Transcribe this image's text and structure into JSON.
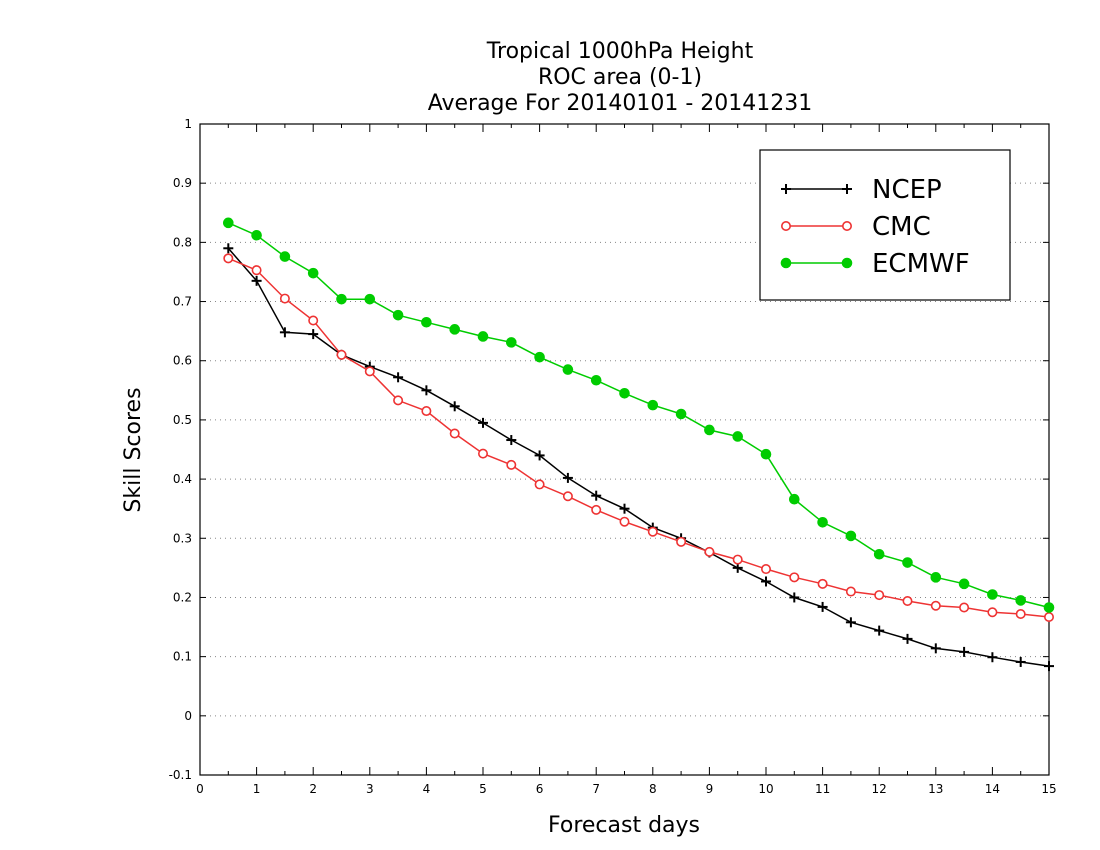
{
  "chart_data": {
    "type": "line",
    "title": [
      "Tropical 1000hPa Height",
      "ROC area (0-1)",
      "Average For 20140101 - 20141231"
    ],
    "xlabel": "Forecast days",
    "ylabel": "Skill Scores",
    "xlim": [
      0,
      15
    ],
    "ylim": [
      -0.1,
      1
    ],
    "xticks": [
      0,
      1,
      2,
      3,
      4,
      5,
      6,
      7,
      8,
      9,
      10,
      11,
      12,
      13,
      14,
      15
    ],
    "xtick_labels": [
      "0",
      "1",
      "2",
      "3",
      "4",
      "5",
      "6",
      "7",
      "8",
      "9",
      "10",
      "11",
      "12",
      "13",
      "14",
      "15"
    ],
    "yticks": [
      -0.1,
      0,
      0.1,
      0.2,
      0.3,
      0.4,
      0.5,
      0.6,
      0.7,
      0.8,
      0.9,
      1
    ],
    "ytick_labels": [
      "-0.1",
      "0",
      "0.1",
      "0.2",
      "0.3",
      "0.4",
      "0.5",
      "0.6",
      "0.7",
      "0.8",
      "0.9",
      "1"
    ],
    "grid": "horizontal dotted",
    "legend_position": "top-right",
    "x": [
      0.5,
      1,
      1.5,
      2,
      2.5,
      3,
      3.5,
      4,
      4.5,
      5,
      5.5,
      6,
      6.5,
      7,
      7.5,
      8,
      8.5,
      9,
      9.5,
      10,
      10.5,
      11,
      11.5,
      12,
      12.5,
      13,
      13.5,
      14,
      14.5,
      15
    ],
    "series": [
      {
        "name": "NCEP",
        "color": "#000000",
        "marker": "plus",
        "values": [
          0.79,
          0.735,
          0.648,
          0.645,
          0.61,
          0.59,
          0.572,
          0.55,
          0.523,
          0.495,
          0.466,
          0.44,
          0.402,
          0.372,
          0.35,
          0.318,
          0.3,
          0.276,
          0.25,
          0.227,
          0.2,
          0.184,
          0.158,
          0.144,
          0.13,
          0.114,
          0.108,
          0.099,
          0.091,
          0.084
        ]
      },
      {
        "name": "CMC",
        "color": "#ee3333",
        "marker": "circle-open",
        "values": [
          0.773,
          0.753,
          0.705,
          0.668,
          0.61,
          0.582,
          0.533,
          0.515,
          0.477,
          0.443,
          0.424,
          0.391,
          0.371,
          0.348,
          0.328,
          0.311,
          0.294,
          0.277,
          0.264,
          0.248,
          0.234,
          0.223,
          0.21,
          0.204,
          0.194,
          0.186,
          0.183,
          0.175,
          0.172,
          0.167
        ]
      },
      {
        "name": "ECMWF",
        "color": "#00cc00",
        "marker": "circle-filled",
        "values": [
          0.833,
          0.812,
          0.776,
          0.748,
          0.704,
          0.704,
          0.677,
          0.665,
          0.653,
          0.641,
          0.631,
          0.606,
          0.585,
          0.567,
          0.545,
          0.525,
          0.51,
          0.483,
          0.472,
          0.442,
          0.366,
          0.327,
          0.304,
          0.273,
          0.259,
          0.234,
          0.223,
          0.205,
          0.195,
          0.183
        ]
      }
    ]
  }
}
